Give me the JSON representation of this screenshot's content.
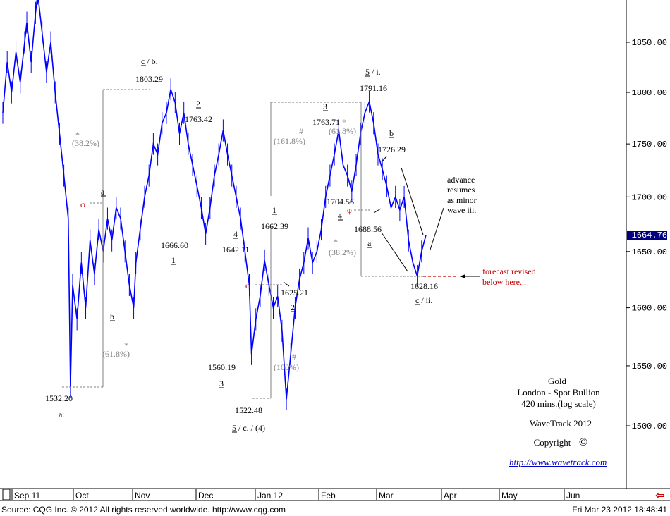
{
  "chart_data": {
    "type": "line",
    "instrument": "Gold",
    "market": "London - Spot Bullion",
    "interval": "420 mins.(log scale)",
    "scale": "log",
    "ylim": [
      1470,
      1900
    ],
    "y_ticks": [
      "1850.00",
      "1800.00",
      "1750.00",
      "1700.00",
      "1650.00",
      "1600.00",
      "1550.00",
      "1500.00"
    ],
    "y_tick_values": [
      1850,
      1800,
      1750,
      1700,
      1650,
      1600,
      1550,
      1500
    ],
    "x_labels": [
      "Sep 11",
      "Oct",
      "Nov",
      "Dec",
      "Jan 12",
      "Feb",
      "Mar",
      "Apr",
      "May",
      "Jun"
    ],
    "last_price_label": "1664.76",
    "last_price": 1664.76,
    "series": [
      {
        "color": "#0000ff",
        "points": [
          [
            0,
            1780
          ],
          [
            2,
            1830
          ],
          [
            4,
            1800
          ],
          [
            6,
            1840
          ],
          [
            8,
            1810
          ],
          [
            10,
            1850
          ],
          [
            11,
            1870
          ],
          [
            13,
            1830
          ],
          [
            15,
            1880
          ],
          [
            16,
            1900
          ],
          [
            18,
            1860
          ],
          [
            20,
            1820
          ],
          [
            22,
            1850
          ],
          [
            24,
            1800
          ],
          [
            26,
            1760
          ],
          [
            28,
            1720
          ],
          [
            30,
            1680
          ],
          [
            31,
            1532
          ],
          [
            32,
            1620
          ],
          [
            34,
            1590
          ],
          [
            36,
            1640
          ],
          [
            38,
            1600
          ],
          [
            40,
            1660
          ],
          [
            42,
            1630
          ],
          [
            44,
            1670
          ],
          [
            46,
            1650
          ],
          [
            48,
            1680
          ],
          [
            50,
            1660
          ],
          [
            52,
            1690
          ],
          [
            54,
            1680
          ],
          [
            56,
            1650
          ],
          [
            58,
            1620
          ],
          [
            60,
            1600
          ],
          [
            61,
            1640
          ],
          [
            63,
            1670
          ],
          [
            65,
            1700
          ],
          [
            67,
            1720
          ],
          [
            69,
            1750
          ],
          [
            71,
            1740
          ],
          [
            73,
            1770
          ],
          [
            75,
            1780
          ],
          [
            77,
            1803
          ],
          [
            79,
            1790
          ],
          [
            81,
            1760
          ],
          [
            83,
            1780
          ],
          [
            85,
            1750
          ],
          [
            87,
            1730
          ],
          [
            89,
            1710
          ],
          [
            91,
            1690
          ],
          [
            93,
            1666
          ],
          [
            95,
            1690
          ],
          [
            97,
            1720
          ],
          [
            99,
            1740
          ],
          [
            101,
            1763
          ],
          [
            103,
            1740
          ],
          [
            105,
            1720
          ],
          [
            107,
            1700
          ],
          [
            109,
            1680
          ],
          [
            111,
            1650
          ],
          [
            113,
            1620
          ],
          [
            114,
            1560
          ],
          [
            116,
            1590
          ],
          [
            118,
            1610
          ],
          [
            120,
            1642
          ],
          [
            122,
            1620
          ],
          [
            124,
            1600
          ],
          [
            126,
            1610
          ],
          [
            128,
            1580
          ],
          [
            130,
            1522
          ],
          [
            132,
            1560
          ],
          [
            134,
            1600
          ],
          [
            136,
            1625
          ],
          [
            138,
            1640
          ],
          [
            140,
            1662
          ],
          [
            142,
            1640
          ],
          [
            144,
            1650
          ],
          [
            146,
            1670
          ],
          [
            148,
            1700
          ],
          [
            150,
            1720
          ],
          [
            152,
            1740
          ],
          [
            154,
            1763
          ],
          [
            156,
            1730
          ],
          [
            158,
            1720
          ],
          [
            160,
            1705
          ],
          [
            162,
            1730
          ],
          [
            164,
            1760
          ],
          [
            166,
            1780
          ],
          [
            168,
            1791
          ],
          [
            170,
            1770
          ],
          [
            172,
            1740
          ],
          [
            174,
            1726
          ],
          [
            176,
            1710
          ],
          [
            178,
            1690
          ],
          [
            180,
            1700
          ],
          [
            182,
            1688
          ],
          [
            184,
            1700
          ],
          [
            186,
            1660
          ],
          [
            188,
            1640
          ],
          [
            190,
            1628
          ],
          [
            192,
            1650
          ],
          [
            194,
            1665
          ]
        ]
      }
    ]
  },
  "annotations": {
    "a_1532": "1532.20",
    "a_label": "a.",
    "b_1803": "1803.29",
    "cb_label": "c / b.",
    "p1666": "1666.60",
    "l1_a": "1",
    "p1763a": "1763.42",
    "l2_a": "2",
    "p1642": "1642.11",
    "l4_a": "4",
    "p1560": "1560.19",
    "l3_a": "3",
    "p1522": "1522.48",
    "c4_label": "5 / c. / (4)",
    "p1662": "1662.39",
    "l1_b": "1",
    "p1625": "1625.21",
    "l2_b": "2",
    "p1763b": "1763.71",
    "l3_b": "3",
    "p1704": "1704.56",
    "l4_b": "4",
    "p1791": "1791.16",
    "i_label": "5 / i.",
    "p1726": "1726.29",
    "lb": "b",
    "p1688": "1688.56",
    "la": "a",
    "p1628": "1628.16",
    "ii_label": "c / ii.",
    "la_oct": "a",
    "lb_oct": "b",
    "fib_382_a": "(38.2%)",
    "fib_618_a": "(61.8%)",
    "fib_1618": "(161.8%)",
    "fib_100": "(100%)",
    "fib_618_b": "(61.8%)",
    "fib_382_b": "(38.2%)",
    "star": "*",
    "hash": "#",
    "phi": "φ",
    "advance_1": "advance",
    "advance_2": "resumes",
    "advance_3": "as minor",
    "advance_4": "wave iii.",
    "forecast_1": "forecast revised",
    "forecast_2": "below here..."
  },
  "info": {
    "line1": "Gold",
    "line2": "London - Spot Bullion",
    "line3": "420 mins.(log scale)",
    "line4": "WaveTrack 2012",
    "line5": "Copyright",
    "copyright_symbol": "©",
    "link": "http://www.wavetrack.com"
  },
  "footer": {
    "source": "Source: CQG Inc. © 2012 All rights reserved worldwide. http://www.cqg.com",
    "timestamp": "Fri Mar 23 2012 18:48:41"
  },
  "colors": {
    "price": "#0000ff",
    "fib": "#808080",
    "red": "#c00000",
    "price_box": "#000080"
  }
}
